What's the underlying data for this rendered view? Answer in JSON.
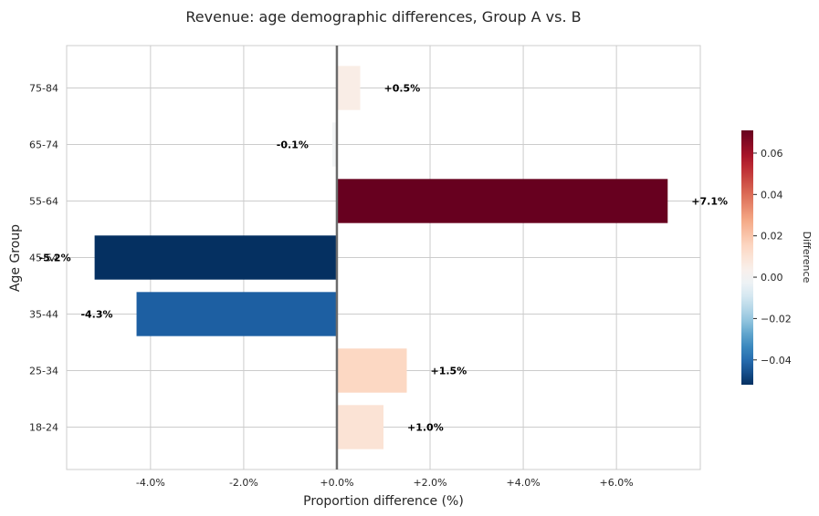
{
  "chart_data": {
    "type": "bar",
    "orientation": "horizontal",
    "title": "Revenue: age demographic differences, Group A vs. B",
    "xlabel": "Proportion difference (%)",
    "ylabel": "Age Group",
    "categories": [
      "18-24",
      "25-34",
      "35-44",
      "45-54",
      "55-64",
      "65-74",
      "75-84"
    ],
    "values": [
      1.0,
      1.5,
      -4.3,
      -5.2,
      7.1,
      -0.1,
      0.5
    ],
    "data_labels": [
      "+1.0%",
      "+1.5%",
      "-4.3%",
      "-5.2%",
      "+7.1%",
      "-0.1%",
      "+0.5%"
    ],
    "xlim": [
      -5.8,
      7.8
    ],
    "xticks": [
      -4,
      -2,
      0,
      2,
      4,
      6
    ],
    "xtick_labels": [
      "-4.0%",
      "-2.0%",
      "+0.0%",
      "+2.0%",
      "+4.0%",
      "+6.0%"
    ],
    "grid": true,
    "colorbar": {
      "label": "Difference",
      "range": [
        -0.052,
        0.071
      ],
      "ticks": [
        -0.04,
        -0.02,
        0.0,
        0.02,
        0.04,
        0.06
      ],
      "tick_labels": [
        "−0.04",
        "−0.02",
        "0.00",
        "0.02",
        "0.04",
        "0.06"
      ],
      "colormap": "RdBu_r"
    }
  }
}
